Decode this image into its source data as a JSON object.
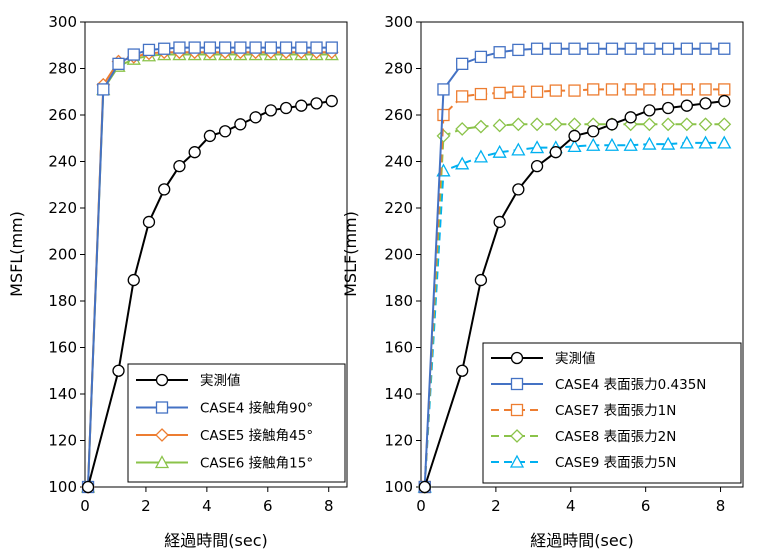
{
  "chart_data": [
    {
      "type": "line",
      "xlabel": "経過時間(sec)",
      "ylabel": "MSFL(mm)",
      "xlim": [
        0,
        8.6
      ],
      "ylim": [
        100,
        300
      ],
      "xticks": [
        "0",
        "2",
        "4",
        "6",
        "8"
      ],
      "yticks": [
        "100",
        "120",
        "140",
        "160",
        "180",
        "200",
        "220",
        "240",
        "260",
        "280",
        "300"
      ],
      "grid": false,
      "legend_position": "bottom-right",
      "series": [
        {
          "name": "実測値",
          "color": "#000000",
          "marker": "circle",
          "dash": "solid",
          "x": [
            0.1,
            1.1,
            1.6,
            2.1,
            2.6,
            3.1,
            3.6,
            4.1,
            4.6,
            5.1,
            5.6,
            6.1,
            6.6,
            7.1,
            7.6,
            8.1
          ],
          "y": [
            100,
            150,
            189,
            214,
            228,
            238,
            244,
            251,
            253,
            256,
            259,
            262,
            263,
            264,
            265,
            266
          ]
        },
        {
          "name": "CASE4 接触角90°",
          "color": "#4472C4",
          "marker": "square",
          "dash": "solid",
          "x": [
            0.1,
            0.6,
            1.1,
            1.6,
            2.1,
            2.6,
            3.1,
            3.6,
            4.1,
            4.6,
            5.1,
            5.6,
            6.1,
            6.6,
            7.1,
            7.6,
            8.1
          ],
          "y": [
            100,
            271,
            282,
            286,
            288,
            288.5,
            289,
            289,
            289,
            289,
            289,
            289,
            289,
            289,
            289,
            289,
            289
          ]
        },
        {
          "name": "CASE5 接触角45°",
          "color": "#ED7D31",
          "marker": "diamond",
          "dash": "solid",
          "x": [
            0.1,
            0.6,
            1.1,
            1.6,
            2.1,
            2.6,
            3.1,
            3.6,
            4.1,
            4.6,
            5.1,
            5.6,
            6.1,
            6.6,
            7.1,
            7.6,
            8.1
          ],
          "y": [
            100,
            273,
            283,
            285,
            286.5,
            287,
            287,
            287,
            287,
            287,
            287,
            287,
            287,
            287,
            287,
            287,
            287
          ]
        },
        {
          "name": "CASE6 接触角15°",
          "color": "#8BC34A",
          "marker": "triangle",
          "dash": "solid",
          "x": [
            0.1,
            0.6,
            1.1,
            1.6,
            2.1,
            2.6,
            3.1,
            3.6,
            4.1,
            4.6,
            5.1,
            5.6,
            6.1,
            6.6,
            7.1,
            7.6,
            8.1
          ],
          "y": [
            100,
            271,
            281,
            284,
            285.5,
            286,
            286,
            286,
            286,
            286,
            286,
            286,
            286,
            286,
            286,
            286,
            286
          ]
        }
      ]
    },
    {
      "type": "line",
      "xlabel": "経過時間(sec)",
      "ylabel": "MSLF(mm)",
      "xlim": [
        0,
        8.6
      ],
      "ylim": [
        100,
        300
      ],
      "xticks": [
        "0",
        "2",
        "4",
        "6",
        "8"
      ],
      "yticks": [
        "100",
        "120",
        "140",
        "160",
        "180",
        "200",
        "220",
        "240",
        "260",
        "280",
        "300"
      ],
      "grid": false,
      "legend_position": "bottom-right",
      "series": [
        {
          "name": "実測値",
          "color": "#000000",
          "marker": "circle",
          "dash": "solid",
          "x": [
            0.1,
            1.1,
            1.6,
            2.1,
            2.6,
            3.1,
            3.6,
            4.1,
            4.6,
            5.1,
            5.6,
            6.1,
            6.6,
            7.1,
            7.6,
            8.1
          ],
          "y": [
            100,
            150,
            189,
            214,
            228,
            238,
            244,
            251,
            253,
            256,
            259,
            262,
            263,
            264,
            265,
            266
          ]
        },
        {
          "name": "CASE4 表面張力0.435N",
          "color": "#4472C4",
          "marker": "square",
          "dash": "solid",
          "x": [
            0.1,
            0.6,
            1.1,
            1.6,
            2.1,
            2.6,
            3.1,
            3.6,
            4.1,
            4.6,
            5.1,
            5.6,
            6.1,
            6.6,
            7.1,
            7.6,
            8.1
          ],
          "y": [
            100,
            271,
            282,
            285,
            287,
            288,
            288.5,
            288.5,
            288.5,
            288.5,
            288.5,
            288.5,
            288.5,
            288.5,
            288.5,
            288.5,
            288.5
          ]
        },
        {
          "name": "CASE7 表面張力1N",
          "color": "#ED7D31",
          "marker": "square",
          "dash": "dashed",
          "x": [
            0.1,
            0.6,
            1.1,
            1.6,
            2.1,
            2.6,
            3.1,
            3.6,
            4.1,
            4.6,
            5.1,
            5.6,
            6.1,
            6.6,
            7.1,
            7.6,
            8.1
          ],
          "y": [
            100,
            260,
            268,
            269,
            269.5,
            270,
            270,
            270.5,
            270.5,
            271,
            271,
            271,
            271,
            271,
            271,
            271,
            271
          ]
        },
        {
          "name": "CASE8 表面張力2N",
          "color": "#8BC34A",
          "marker": "diamond",
          "dash": "dashed",
          "x": [
            0.1,
            0.6,
            1.1,
            1.6,
            2.1,
            2.6,
            3.1,
            3.6,
            4.1,
            4.6,
            5.1,
            5.6,
            6.1,
            6.6,
            7.1,
            7.6,
            8.1
          ],
          "y": [
            100,
            251,
            254,
            255,
            255.5,
            256,
            256,
            256,
            256,
            256,
            256,
            256,
            256,
            256,
            256,
            256,
            256
          ]
        },
        {
          "name": "CASE9 表面張力5N",
          "color": "#00B0F0",
          "marker": "triangle",
          "dash": "dashed",
          "x": [
            0.1,
            0.6,
            1.1,
            1.6,
            2.1,
            2.6,
            3.1,
            3.6,
            4.1,
            4.6,
            5.1,
            5.6,
            6.1,
            6.6,
            7.1,
            7.6,
            8.1
          ],
          "y": [
            100,
            236,
            239,
            242,
            244,
            245,
            246,
            246,
            246.5,
            247,
            247,
            247,
            247.5,
            247.5,
            248,
            248,
            248
          ]
        }
      ]
    }
  ]
}
